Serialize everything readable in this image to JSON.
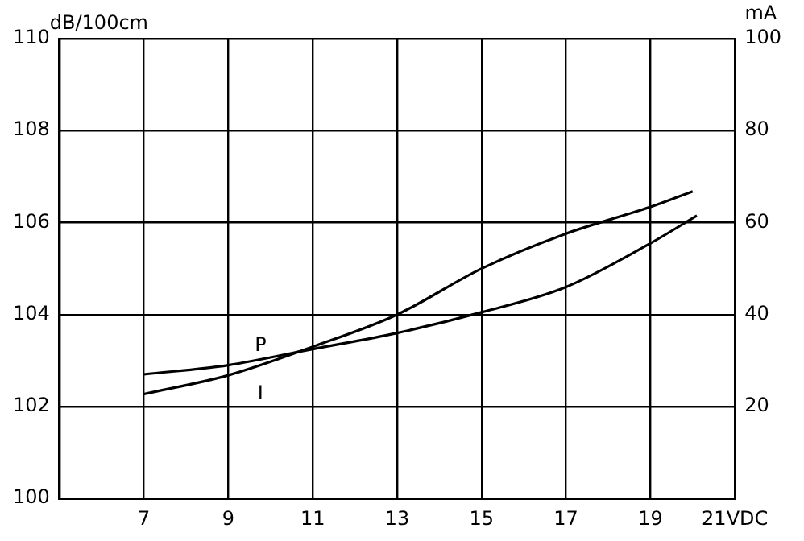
{
  "chart_data": {
    "type": "line",
    "ylabel": "dB/100cm",
    "y2label": "mA",
    "x": [
      7,
      9,
      11,
      13,
      15,
      17,
      19,
      20.1
    ],
    "series": [
      {
        "name": "P",
        "color": "#000000",
        "values": [
          102.7,
          102.9,
          103.25,
          103.6,
          104.05,
          104.6,
          105.55,
          106.15
        ]
      },
      {
        "name": "I",
        "color": "#000000",
        "axis": "y2",
        "x": [
          7,
          9,
          11,
          13,
          15,
          17,
          19,
          20
        ],
        "values": [
          22.7,
          26.8,
          33,
          40,
          50,
          57.6,
          63.4,
          66.8
        ]
      }
    ],
    "xlim": [
      5,
      21
    ],
    "xticks": [
      {
        "value": 5,
        "label": null
      },
      7,
      9,
      11,
      13,
      15,
      17,
      19,
      {
        "value": 21,
        "label": "21VDC"
      }
    ],
    "ylim": [
      100,
      110
    ],
    "yticks": [
      100,
      102,
      104,
      106,
      108,
      110
    ],
    "y2lim": [
      0,
      100
    ],
    "y2ticks": [
      20,
      40,
      60,
      80,
      100
    ],
    "grid": true,
    "legend": false,
    "marker": "none",
    "line_style": "solid"
  }
}
